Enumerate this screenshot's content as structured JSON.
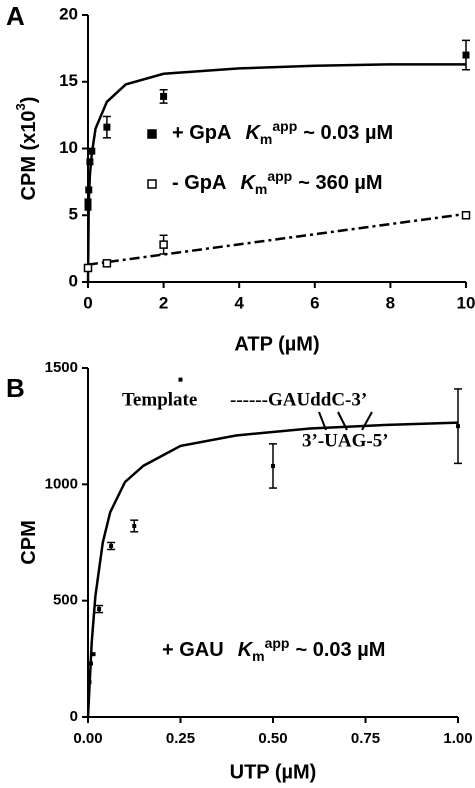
{
  "chart_data": [
    {
      "type": "scatter",
      "panel": "A",
      "ylabel": {
        "text": "CPM (x10",
        "sup": "3",
        "end": ")"
      },
      "xlabel": "ATP (µM)",
      "xlim": [
        0,
        10
      ],
      "ylim": [
        0,
        20
      ],
      "xticks": [
        0,
        2,
        4,
        6,
        8,
        10
      ],
      "yticks": [
        0,
        5,
        10,
        15,
        20
      ],
      "series": [
        {
          "name": "+ GpA",
          "marker": "filled",
          "color": "#000000",
          "x": [
            0,
            0,
            0.02,
            0.05,
            0.1,
            0.5,
            2,
            10
          ],
          "values": [
            5.6,
            6,
            6.9,
            9,
            9.8,
            11.6,
            13.9,
            17
          ],
          "errors": [
            null,
            null,
            null,
            null,
            null,
            0.8,
            0.5,
            1.1
          ],
          "km": {
            "k": "K",
            "sub": "m",
            "sup": "app",
            "value": "~ 0.03 µM"
          }
        },
        {
          "name": "- GpA",
          "marker": "open",
          "color": "#000000",
          "x": [
            0,
            0.5,
            2,
            10
          ],
          "values": [
            1.05,
            1.4,
            2.8,
            5
          ],
          "errors": [
            null,
            null,
            0.7,
            null
          ],
          "km": {
            "k": "K",
            "sub": "m",
            "sup": "app",
            "value": "~ 360 µM"
          }
        }
      ],
      "fits": [
        {
          "style": "solid",
          "x": [
            0,
            0.02,
            0.05,
            0.1,
            0.2,
            0.5,
            1,
            2,
            4,
            6,
            8,
            10
          ],
          "values": [
            0,
            6,
            8,
            9.6,
            11.5,
            13.5,
            14.8,
            15.6,
            16,
            16.2,
            16.3,
            16.3
          ]
        },
        {
          "style": "dashdot",
          "x": [
            0,
            10
          ],
          "values": [
            1.3,
            5.1
          ]
        }
      ]
    },
    {
      "type": "scatter",
      "panel": "B",
      "ylabel": {
        "text": "CPM"
      },
      "xlabel": "UTP (µM)",
      "xlim": [
        0,
        1
      ],
      "ylim": [
        0,
        1500
      ],
      "xticks": [
        {
          "value": 0,
          "label": "0.00"
        },
        {
          "value": 0.25,
          "label": "0.25"
        },
        {
          "value": 0.5,
          "label": "0.50"
        },
        {
          "value": 0.75,
          "label": "0.75"
        },
        {
          "value": 1,
          "label": "1.00"
        }
      ],
      "yticks": [
        0,
        500,
        1000,
        1500
      ],
      "template": {
        "left": "Template",
        "strand": "------GAUddC-3’",
        "partner": "3’-UAG-5’"
      },
      "series": [
        {
          "name": "+ GAU",
          "marker": "small",
          "color": "#000000",
          "x": [
            0.004,
            0.008,
            0.015,
            0.03,
            0.0625,
            0.125,
            0.25,
            0.5,
            1
          ],
          "values": [
            150,
            230,
            270,
            464,
            735,
            821,
            1450,
            1079,
            1250
          ],
          "errors": [
            null,
            null,
            null,
            15,
            15,
            25,
            null,
            95,
            160
          ],
          "km": {
            "k": "K",
            "sub": "m",
            "sup": "app",
            "value": "~ 0.03 µM"
          }
        }
      ],
      "fits": [
        {
          "style": "solid",
          "x": [
            0,
            0.01,
            0.02,
            0.04,
            0.06,
            0.1,
            0.15,
            0.25,
            0.4,
            0.6,
            0.8,
            1
          ],
          "values": [
            0,
            320,
            520,
            750,
            880,
            1010,
            1080,
            1165,
            1210,
            1240,
            1255,
            1265
          ]
        }
      ]
    }
  ]
}
